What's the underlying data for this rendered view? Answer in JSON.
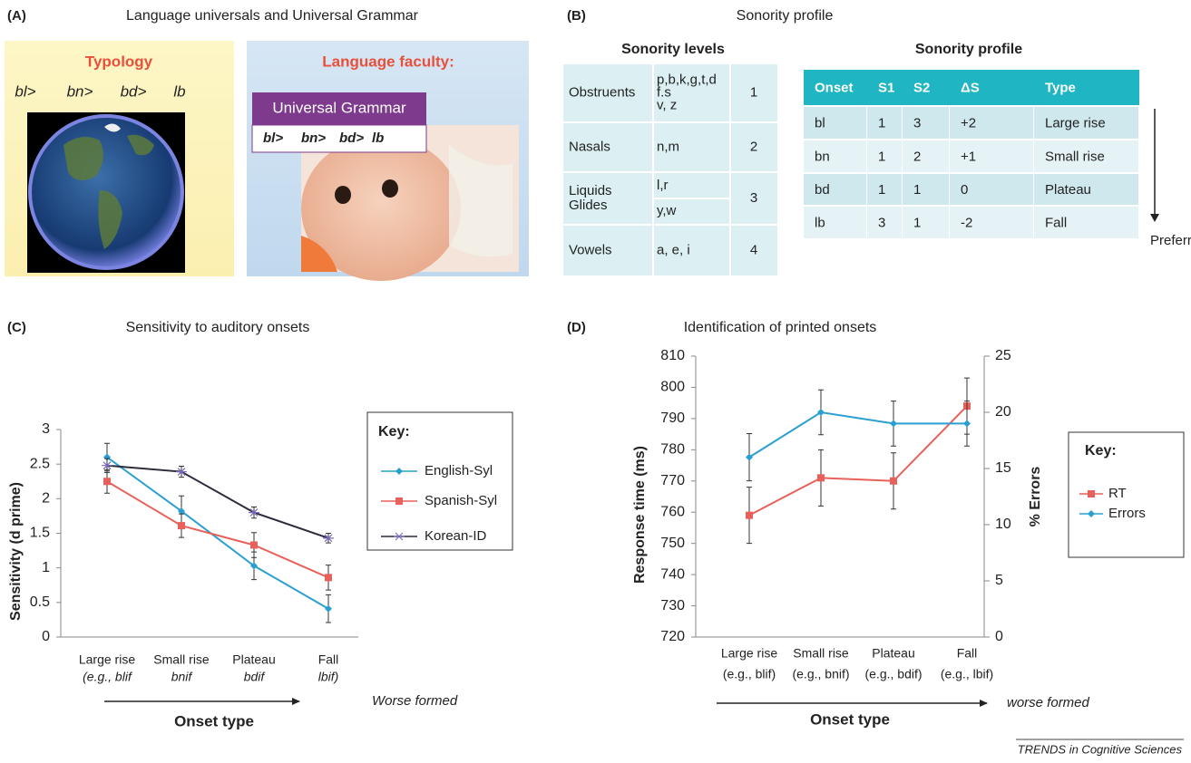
{
  "panel_a": {
    "label": "(A)",
    "title": "Language universals and Universal Grammar",
    "typology": "Typology",
    "onsets": [
      "bl>",
      "bn>",
      "bd>",
      "lb"
    ],
    "faculty": "Language faculty:",
    "grammar": "Universal Grammar"
  },
  "panel_b": {
    "label": "(B)",
    "title": "Sonority profile",
    "levels": {
      "title": "Sonority levels",
      "rows": [
        {
          "class": [
            "Obstruents"
          ],
          "segments": [
            "p,b,k,g,t,d",
            "f.s",
            "v, z"
          ],
          "level": 1
        },
        {
          "class": [
            "Nasals"
          ],
          "segments": [
            "n,m"
          ],
          "level": 2
        },
        {
          "class": [
            "Liquids",
            "Glides"
          ],
          "segments": [
            "l,r",
            "y,w"
          ],
          "level": 3
        },
        {
          "class": [
            "Vowels"
          ],
          "segments": [
            "a, e, i"
          ],
          "level": 4
        }
      ]
    },
    "profile": {
      "title": "Sonority profile",
      "header": [
        "Onset",
        "S1",
        "S2",
        "ΔS",
        "Type"
      ],
      "rows": [
        [
          "bl",
          1,
          3,
          "+2",
          "Large rise"
        ],
        [
          "bn",
          1,
          2,
          "+1",
          "Small rise"
        ],
        [
          "bd",
          1,
          1,
          0,
          "Plateau"
        ],
        [
          "lb",
          3,
          1,
          -2,
          "Fall"
        ]
      ]
    },
    "arrow_label": "Preferred"
  },
  "chart_data": [
    {
      "type": "line",
      "label": "(C)",
      "title": "Sensitivity to auditory onsets",
      "y_label": "Sensitivity (d prime)",
      "x_label": "Onset type",
      "note": "Worse formed",
      "categories": [
        [
          "Large rise",
          "(e.g., blif"
        ],
        [
          "Small rise",
          "bnif"
        ],
        [
          "Plateau",
          "bdif"
        ],
        [
          "Fall",
          "lbif)"
        ]
      ],
      "ylim": [
        0,
        3
      ],
      "yticks": [
        0,
        0.5,
        1,
        1.5,
        2,
        2.5,
        3
      ],
      "legend_title": "Key:",
      "legend": "right",
      "series": [
        {
          "name": "English-Syl",
          "color": "#2b9fd0",
          "marker": "diamond",
          "values": [
            2.6,
            1.82,
            1.03,
            0.41
          ],
          "errors": [
            0.2,
            0.22,
            0.2,
            0.2
          ]
        },
        {
          "name": "Spanish-Syl",
          "color": "#e8605a",
          "marker": "square",
          "values": [
            2.25,
            1.61,
            1.33,
            0.86
          ],
          "errors": [
            0.17,
            0.17,
            0.18,
            0.18
          ]
        },
        {
          "name": "Korean-ID",
          "color": "#2a2a3a",
          "marker": "x",
          "values": [
            2.48,
            2.39,
            1.8,
            1.43
          ],
          "errors": [
            0.1,
            0.08,
            0.08,
            0.07
          ]
        }
      ]
    },
    {
      "type": "line",
      "label": "(D)",
      "title": "Identification of printed onsets",
      "y_label": "Response time (ms)",
      "y2_label": "% Errors",
      "x_label": "Onset type",
      "note": "worse formed",
      "categories": [
        [
          "Large rise",
          "(e.g., blif)"
        ],
        [
          "Small rise",
          "(e.g., bnif)"
        ],
        [
          "Plateau",
          "(e.g., bdif)"
        ],
        [
          "Fall",
          "(e.g., lbif)"
        ]
      ],
      "ylim": [
        720,
        810
      ],
      "yticks": [
        720,
        730,
        740,
        750,
        760,
        770,
        780,
        790,
        800,
        810
      ],
      "y2lim": [
        0,
        25
      ],
      "y2ticks": [
        0,
        5,
        10,
        15,
        20,
        25
      ],
      "legend_title": "Key:",
      "legend": "right",
      "series": [
        {
          "name": "RT",
          "color": "#e8605a",
          "marker": "square",
          "values": [
            759,
            771,
            770,
            794
          ],
          "errors": [
            9,
            9,
            9,
            9
          ]
        },
        {
          "name": "Errors",
          "color": "#2b9fd0",
          "marker": "diamond",
          "axis": "y2",
          "values": [
            16,
            20,
            19,
            19
          ],
          "errors": [
            2.1,
            2,
            2,
            2
          ]
        }
      ]
    }
  ],
  "footer": "TRENDS in Cognitive Sciences"
}
